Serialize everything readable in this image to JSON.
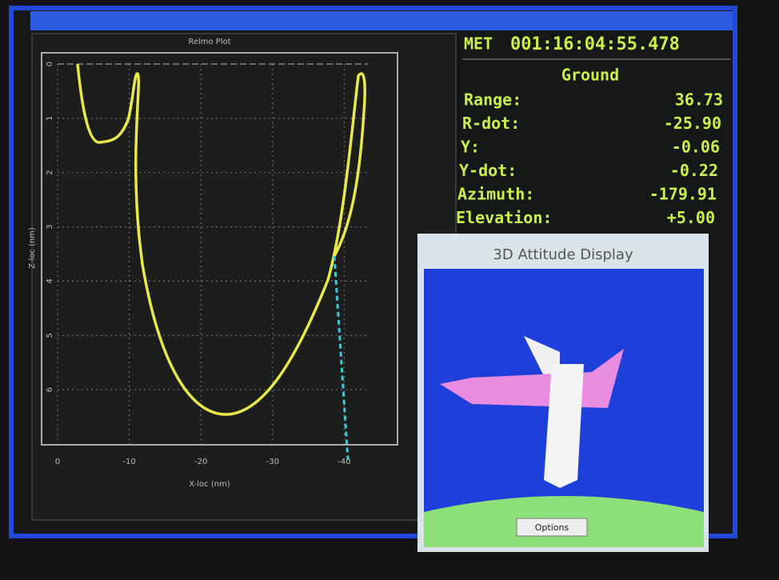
{
  "plot": {
    "title": "Relmo Plot",
    "x_label": "X-loc (nm)",
    "y_label": "Z-loc (nm)",
    "xlim": [
      0,
      -43.3
    ],
    "xticks": [
      0,
      -10,
      -20,
      -30,
      -40
    ],
    "ylim": [
      0,
      7
    ],
    "yticks": [
      0,
      1,
      2,
      3,
      4,
      5,
      6
    ]
  },
  "status": {
    "met_label": "MET",
    "met_value": "001:16:04:55.478",
    "section": "Ground",
    "rows": [
      {
        "label": "Range:",
        "value": "36.73"
      },
      {
        "label": "R-dot:",
        "value": "-25.90"
      },
      {
        "label": "Y:",
        "value": "-0.06"
      },
      {
        "label": "Y-dot:",
        "value": "-0.22"
      },
      {
        "label": "Azimuth:",
        "value": "-179.91"
      },
      {
        "label": "Elevation:",
        "value": "+5.00"
      }
    ]
  },
  "attitude": {
    "title": "3D Attitude Display",
    "button": "Options"
  }
}
